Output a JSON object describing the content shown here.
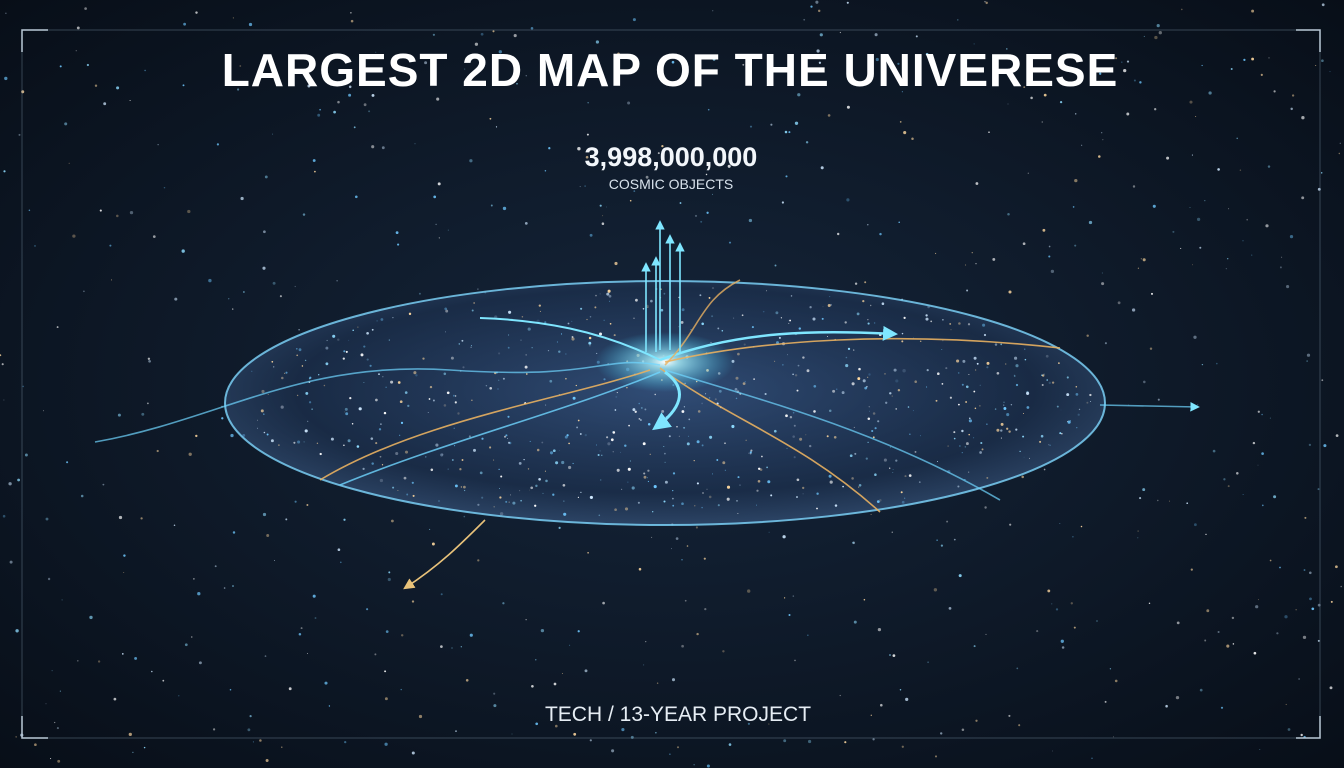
{
  "header": {
    "title": "LARGEST 2D MAP OF THE UNIVERESE"
  },
  "stat": {
    "value": "3,998,000,000",
    "label": "COSMIC OBJECTS"
  },
  "footer": {
    "text": "TECH / 13-YEAR PROJECT"
  }
}
